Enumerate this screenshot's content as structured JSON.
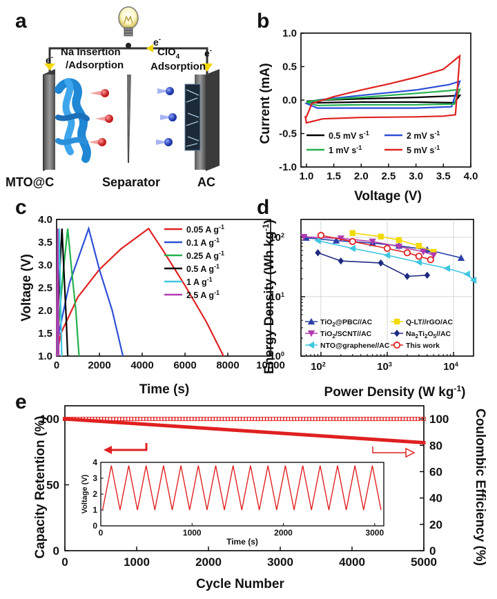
{
  "panel_labels": [
    "a",
    "b",
    "c",
    "d",
    "e"
  ],
  "schematic": {
    "left_electrode": "MTO@C",
    "separator": "Separator",
    "right_electrode": "AC",
    "left_process": "Na Insertion\n/Adsorption",
    "right_process_ion": "ClO4",
    "right_process_ion_sup": "4",
    "right_process_ion_charge": "-",
    "right_process": "Adsorption",
    "electron": "e",
    "electron_charge": "-",
    "colors": {
      "cation": "#e23b3b",
      "anion": "#2d4fd6",
      "wire": "#444444"
    }
  },
  "chart_data": [
    {
      "panel": "b",
      "type": "line",
      "title": "",
      "xlabel": "Voltage (V)",
      "ylabel": "Current (mA)",
      "xlim": [
        0.9,
        4.0
      ],
      "ylim": [
        -1.0,
        1.0
      ],
      "xticks": [
        "1.0",
        "1.5",
        "2.0",
        "2.5",
        "3.0",
        "3.5",
        "4.0"
      ],
      "yticks": [
        "-1.0",
        "-0.5",
        "0.0",
        "0.5",
        "1.0"
      ],
      "series": [
        {
          "name": "0.5 mV s",
          "unit_sup": "-1",
          "color": "#000000",
          "upper": [
            [
              1.0,
              -0.02
            ],
            [
              1.3,
              0.0
            ],
            [
              2.0,
              0.02
            ],
            [
              3.0,
              0.04
            ],
            [
              3.6,
              0.06
            ],
            [
              3.8,
              0.07
            ]
          ],
          "lower": [
            [
              3.8,
              0.07
            ],
            [
              3.7,
              -0.04
            ],
            [
              3.0,
              -0.03
            ],
            [
              2.0,
              -0.03
            ],
            [
              1.2,
              -0.04
            ],
            [
              1.0,
              -0.02
            ]
          ]
        },
        {
          "name": "2 mV s",
          "unit_sup": "-1",
          "color": "#2d4fd6",
          "upper": [
            [
              1.0,
              -0.05
            ],
            [
              1.2,
              0.0
            ],
            [
              2.0,
              0.07
            ],
            [
              3.0,
              0.15
            ],
            [
              3.6,
              0.23
            ],
            [
              3.8,
              0.28
            ]
          ],
          "lower": [
            [
              3.8,
              0.28
            ],
            [
              3.65,
              -0.1
            ],
            [
              3.0,
              -0.12
            ],
            [
              2.0,
              -0.12
            ],
            [
              1.2,
              -0.12
            ],
            [
              1.0,
              -0.05
            ]
          ]
        },
        {
          "name": "1 mV s",
          "unit_sup": "-1",
          "color": "#22b14c",
          "upper": [
            [
              1.0,
              -0.03
            ],
            [
              1.25,
              0.0
            ],
            [
              2.0,
              0.04
            ],
            [
              3.0,
              0.1
            ],
            [
              3.6,
              0.14
            ],
            [
              3.8,
              0.16
            ]
          ],
          "lower": [
            [
              3.8,
              0.16
            ],
            [
              3.7,
              -0.06
            ],
            [
              3.0,
              -0.07
            ],
            [
              2.0,
              -0.07
            ],
            [
              1.2,
              -0.08
            ],
            [
              1.0,
              -0.03
            ]
          ]
        },
        {
          "name": "5 mV s",
          "unit_sup": "-1",
          "color": "#e02020",
          "upper": [
            [
              1.0,
              -0.25
            ],
            [
              1.1,
              -0.05
            ],
            [
              1.5,
              0.05
            ],
            [
              2.0,
              0.15
            ],
            [
              2.5,
              0.24
            ],
            [
              3.0,
              0.34
            ],
            [
              3.5,
              0.46
            ],
            [
              3.8,
              0.66
            ]
          ],
          "lower": [
            [
              3.8,
              0.66
            ],
            [
              3.72,
              -0.22
            ],
            [
              3.5,
              -0.24
            ],
            [
              3.0,
              -0.25
            ],
            [
              2.0,
              -0.26
            ],
            [
              1.3,
              -0.28
            ],
            [
              1.0,
              -0.34
            ],
            [
              0.98,
              -0.25
            ]
          ]
        }
      ]
    },
    {
      "panel": "c",
      "type": "line",
      "xlabel": "Time (s)",
      "ylabel": "Voltage (V)",
      "xlim": [
        0,
        10000
      ],
      "ylim": [
        1.0,
        4.0
      ],
      "xticks": [
        "0",
        "2000",
        "4000",
        "6000",
        "8000",
        "10000"
      ],
      "yticks": [
        "1.0",
        "1.5",
        "2.0",
        "2.5",
        "3.0",
        "3.5",
        "4.0"
      ],
      "series": [
        {
          "name": "0.05 A g",
          "unit_sup": "-1",
          "color": "#e02020",
          "points": [
            [
              0,
              1.0
            ],
            [
              200,
              1.5
            ],
            [
              1000,
              2.3
            ],
            [
              2000,
              2.9
            ],
            [
              3000,
              3.35
            ],
            [
              4300,
              3.8
            ],
            [
              5000,
              3.3
            ],
            [
              6000,
              2.55
            ],
            [
              7000,
              1.75
            ],
            [
              7800,
              1.0
            ]
          ]
        },
        {
          "name": "0.1 A g",
          "unit_sup": "-1",
          "color": "#2d4fd6",
          "points": [
            [
              0,
              1.0
            ],
            [
              100,
              1.5
            ],
            [
              600,
              2.6
            ],
            [
              1500,
              3.8
            ],
            [
              2000,
              2.9
            ],
            [
              2600,
              2.0
            ],
            [
              3100,
              1.0
            ]
          ]
        },
        {
          "name": "0.25 A g",
          "unit_sup": "-1",
          "color": "#22b14c",
          "points": [
            [
              0,
              1.0
            ],
            [
              60,
              1.5
            ],
            [
              300,
              2.8
            ],
            [
              520,
              3.8
            ],
            [
              700,
              2.9
            ],
            [
              900,
              2.0
            ],
            [
              1050,
              1.0
            ]
          ]
        },
        {
          "name": "0.5 A g",
          "unit_sup": "-1",
          "color": "#000000",
          "points": [
            [
              0,
              1.0
            ],
            [
              40,
              1.6
            ],
            [
              150,
              2.9
            ],
            [
              250,
              3.8
            ],
            [
              350,
              2.8
            ],
            [
              450,
              1.8
            ],
            [
              520,
              1.0
            ]
          ]
        },
        {
          "name": "1 A g",
          "unit_sup": "-1",
          "color": "#3ec6e0",
          "points": [
            [
              0,
              1.0
            ],
            [
              60,
              2.4
            ],
            [
              120,
              3.8
            ],
            [
              180,
              2.4
            ],
            [
              240,
              1.0
            ]
          ]
        },
        {
          "name": "2.5 A g",
          "unit_sup": "-1",
          "color": "#b03bb0",
          "points": [
            [
              0,
              1.0
            ],
            [
              25,
              2.4
            ],
            [
              50,
              3.8
            ],
            [
              75,
              2.4
            ],
            [
              100,
              1.0
            ]
          ]
        }
      ]
    },
    {
      "panel": "d",
      "type": "scatter",
      "xlabel": "Power Density (W kg",
      "xlabel_sup": "-1",
      "xlabel_end": ")",
      "ylabel": "Energy Density (Wh kg",
      "ylabel_sup": "-1",
      "ylabel_end": ")",
      "xscale": "log",
      "yscale": "log",
      "xlim": [
        50,
        20000
      ],
      "ylim": [
        1,
        200
      ],
      "xticks": [
        {
          "base": "10",
          "exp": "2"
        },
        {
          "base": "10",
          "exp": "3"
        },
        {
          "base": "10",
          "exp": "4"
        }
      ],
      "yticks": [
        {
          "base": "10",
          "exp": "0"
        },
        {
          "base": "10",
          "exp": "1"
        },
        {
          "base": "10",
          "exp": "2"
        }
      ],
      "series": [
        {
          "name": "TiO2@PBC//AC",
          "name_parts": [
            "TiO",
            "2",
            "@PBC//AC"
          ],
          "color": "#2a3fa8",
          "marker": "triangle-up",
          "points": [
            [
              60,
              98
            ],
            [
              170,
              88
            ],
            [
              600,
              80
            ],
            [
              1500,
              72
            ],
            [
              4000,
              62
            ],
            [
              13000,
              45
            ]
          ]
        },
        {
          "name": "Q-LT//rGO/AC",
          "color": "#f2d900",
          "marker": "square",
          "points": [
            [
              300,
              118
            ],
            [
              800,
              103
            ],
            [
              1500,
              90
            ],
            [
              3000,
              72
            ],
            [
              5000,
              57
            ]
          ]
        },
        {
          "name": "TiO2/SCNT//AC",
          "name_parts": [
            "TiO",
            "2",
            "/SCNT//AC"
          ],
          "color": "#b03bb0",
          "marker": "triangle-down",
          "points": [
            [
              55,
              102
            ],
            [
              200,
              96
            ],
            [
              600,
              85
            ],
            [
              1500,
              70
            ],
            [
              3500,
              57
            ],
            [
              5000,
              50
            ]
          ]
        },
        {
          "name": "Na2Ti2O5//AC",
          "name_parts": [
            "Na",
            "2",
            "Ti",
            "2",
            "O",
            "5",
            "//AC"
          ],
          "color": "#1e2a80",
          "marker": "diamond",
          "points": [
            [
              90,
              55
            ],
            [
              200,
              40
            ],
            [
              800,
              37
            ],
            [
              2000,
              22
            ],
            [
              4000,
              23
            ]
          ]
        },
        {
          "name": "NTO@graphene//AC",
          "color": "#3ec6e0",
          "marker": "triangle-left",
          "points": [
            [
              90,
              88
            ],
            [
              300,
              65
            ],
            [
              1000,
              50
            ],
            [
              3000,
              38
            ],
            [
              8000,
              30
            ],
            [
              16000,
              24
            ],
            [
              20000,
              19
            ]
          ]
        },
        {
          "name": "This work",
          "color": "#e02020",
          "marker": "circle",
          "points": [
            [
              100,
              108
            ],
            [
              300,
              85
            ],
            [
              1000,
              65
            ],
            [
              2000,
              55
            ],
            [
              3000,
              48
            ],
            [
              4500,
              42
            ]
          ]
        }
      ]
    },
    {
      "panel": "e",
      "type": "scatter",
      "xlabel": "Cycle Number",
      "ylabel": "Capacity Retention (%)",
      "ylabel_right": "Coulombic Efficiency (%)",
      "xlim": [
        0,
        5000
      ],
      "ylim": [
        0,
        110
      ],
      "ylim_right": [
        0,
        110
      ],
      "xticks": [
        "0",
        "1000",
        "2000",
        "3000",
        "4000",
        "5000"
      ],
      "yticks": [
        "0",
        "50",
        "100"
      ],
      "yticks_right": [
        "0",
        "20",
        "40",
        "60",
        "80",
        "100"
      ],
      "color": "#e02020",
      "retention": {
        "start": 100,
        "end": 82,
        "n_points": 120
      },
      "efficiency": {
        "value": 100,
        "n_points": 120
      },
      "inset": {
        "xlabel": "Time (s)",
        "ylabel": "Voltage (V)",
        "xlim": [
          0,
          3100
        ],
        "ylim": [
          0,
          4
        ],
        "xticks": [
          "0",
          "1000",
          "2000",
          "3000"
        ],
        "yticks": [
          "0",
          "1",
          "2",
          "3",
          "4"
        ],
        "cycles": 16,
        "vmin": 1.0,
        "vmax": 3.8
      }
    }
  ]
}
